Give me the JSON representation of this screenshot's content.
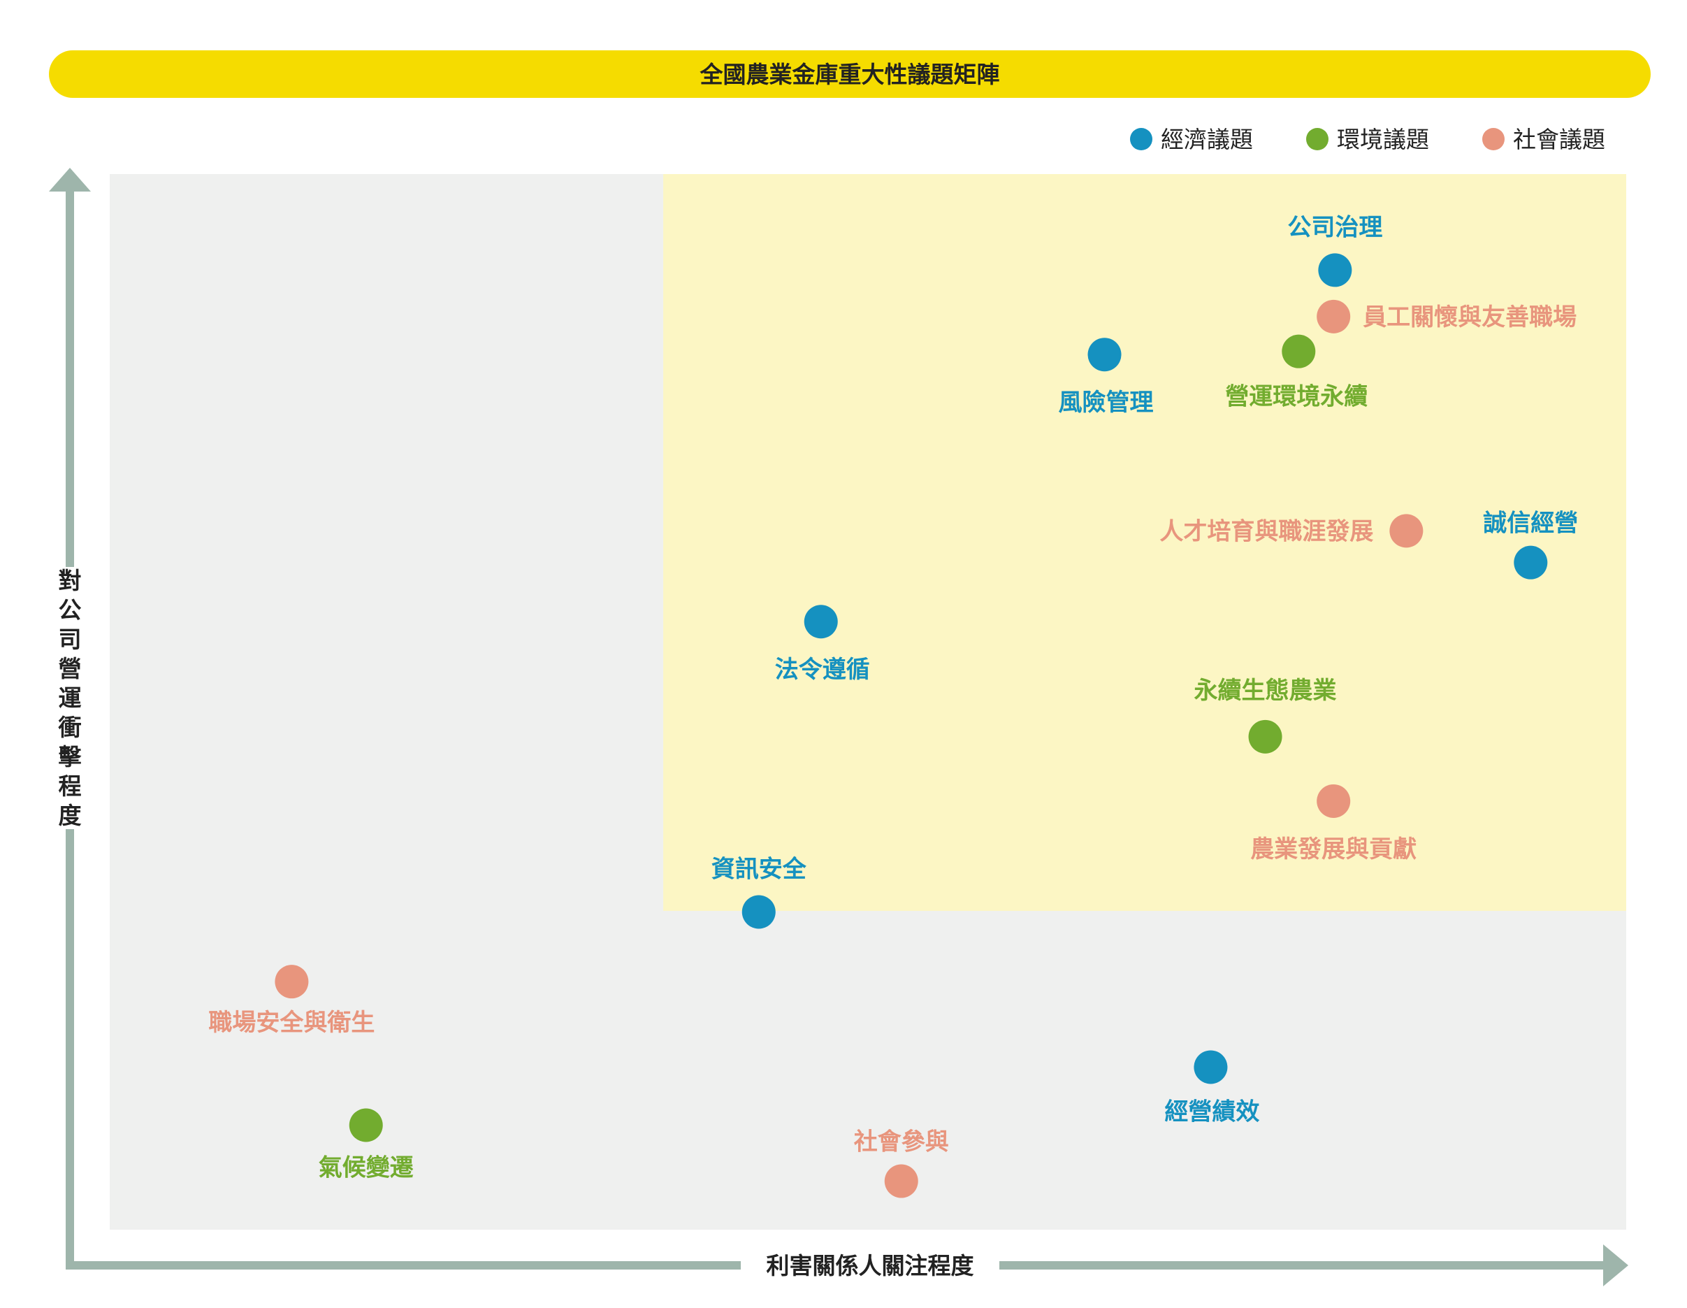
{
  "chart_data": {
    "type": "scatter",
    "title": "全國農業金庫重大性議題矩陣",
    "xlabel": "利害關係人關注程度",
    "ylabel": "對公司營運衝擊程度",
    "xlim": [
      0,
      100
    ],
    "ylim": [
      0,
      100
    ],
    "highlight_region": {
      "x": [
        36.5,
        100
      ],
      "y": [
        30.2,
        100
      ]
    },
    "grid": false,
    "legend_position": "top-right",
    "series": [
      {
        "name": "經濟議題",
        "color": "#1591C0",
        "points": [
          {
            "label": "公司治理",
            "x": 80.8,
            "y": 90.9
          },
          {
            "label": "風險管理",
            "x": 65.6,
            "y": 82.9
          },
          {
            "label": "誠信經營",
            "x": 93.7,
            "y": 63.2
          },
          {
            "label": "法令遵循",
            "x": 46.9,
            "y": 57.6
          },
          {
            "label": "資訊安全",
            "x": 42.8,
            "y": 30.1
          },
          {
            "label": "經營績效",
            "x": 72.6,
            "y": 15.4
          }
        ]
      },
      {
        "name": "環境議題",
        "color": "#72AC2F",
        "points": [
          {
            "label": "營運環境永續",
            "x": 78.4,
            "y": 83.2
          },
          {
            "label": "永續生態農業",
            "x": 76.2,
            "y": 46.7
          },
          {
            "label": "氣候變遷",
            "x": 16.9,
            "y": 9.9
          }
        ]
      },
      {
        "name": "社會議題",
        "color": "#E8957D",
        "points": [
          {
            "label": "員工關懷與友善職場",
            "x": 80.7,
            "y": 86.5
          },
          {
            "label": "人才培育與職涯發展",
            "x": 85.5,
            "y": 66.2
          },
          {
            "label": "農業發展與貢獻",
            "x": 80.7,
            "y": 40.6
          },
          {
            "label": "職場安全與衛生",
            "x": 12.0,
            "y": 23.5
          },
          {
            "label": "社會參與",
            "x": 52.2,
            "y": 4.6
          }
        ]
      }
    ]
  }
}
